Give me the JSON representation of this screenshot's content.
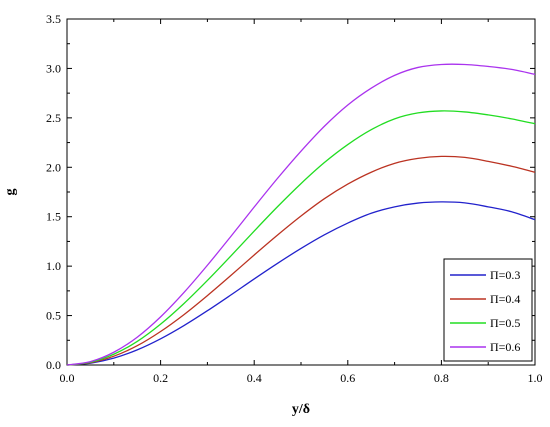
{
  "chart_data": {
    "type": "line",
    "title": "",
    "xlabel": "y/δ",
    "ylabel": "g",
    "xlim": [
      0.0,
      1.0
    ],
    "ylim": [
      0.0,
      3.5
    ],
    "x_ticks": [
      "0.0",
      "0.2",
      "0.4",
      "0.6",
      "0.8",
      "1.0"
    ],
    "y_ticks": [
      "0.0",
      "0.5",
      "1.0",
      "1.5",
      "2.0",
      "2.5",
      "3.0",
      "3.5"
    ],
    "grid": false,
    "legend_position": "bottom-right",
    "x": [
      0.0,
      0.05,
      0.1,
      0.15,
      0.2,
      0.25,
      0.3,
      0.35,
      0.4,
      0.45,
      0.5,
      0.55,
      0.6,
      0.65,
      0.7,
      0.75,
      0.8,
      0.85,
      0.9,
      0.95,
      1.0
    ],
    "series": [
      {
        "name": "Π=0.3",
        "color": "#2222cc",
        "values": [
          0.0,
          0.018,
          0.069,
          0.153,
          0.265,
          0.399,
          0.549,
          0.708,
          0.871,
          1.029,
          1.179,
          1.317,
          1.436,
          1.535,
          1.6,
          1.638,
          1.65,
          1.64,
          1.6,
          1.55,
          1.47
        ]
      },
      {
        "name": "Π=0.4",
        "color": "#bb3322",
        "values": [
          0.0,
          0.023,
          0.089,
          0.195,
          0.339,
          0.51,
          0.702,
          0.905,
          1.113,
          1.315,
          1.507,
          1.682,
          1.83,
          1.95,
          2.04,
          2.09,
          2.11,
          2.1,
          2.06,
          2.01,
          1.95
        ]
      },
      {
        "name": "Π=0.5",
        "color": "#22dd22",
        "values": [
          0.0,
          0.028,
          0.109,
          0.238,
          0.413,
          0.622,
          0.855,
          1.102,
          1.355,
          1.602,
          1.835,
          2.048,
          2.23,
          2.38,
          2.49,
          2.55,
          2.57,
          2.56,
          2.53,
          2.49,
          2.44
        ]
      },
      {
        "name": "Π=0.6",
        "color": "#aa33ee",
        "values": [
          0.0,
          0.034,
          0.129,
          0.281,
          0.487,
          0.734,
          1.009,
          1.3,
          1.598,
          1.889,
          2.163,
          2.415,
          2.63,
          2.8,
          2.93,
          3.01,
          3.04,
          3.04,
          3.02,
          2.99,
          2.94
        ]
      }
    ]
  }
}
